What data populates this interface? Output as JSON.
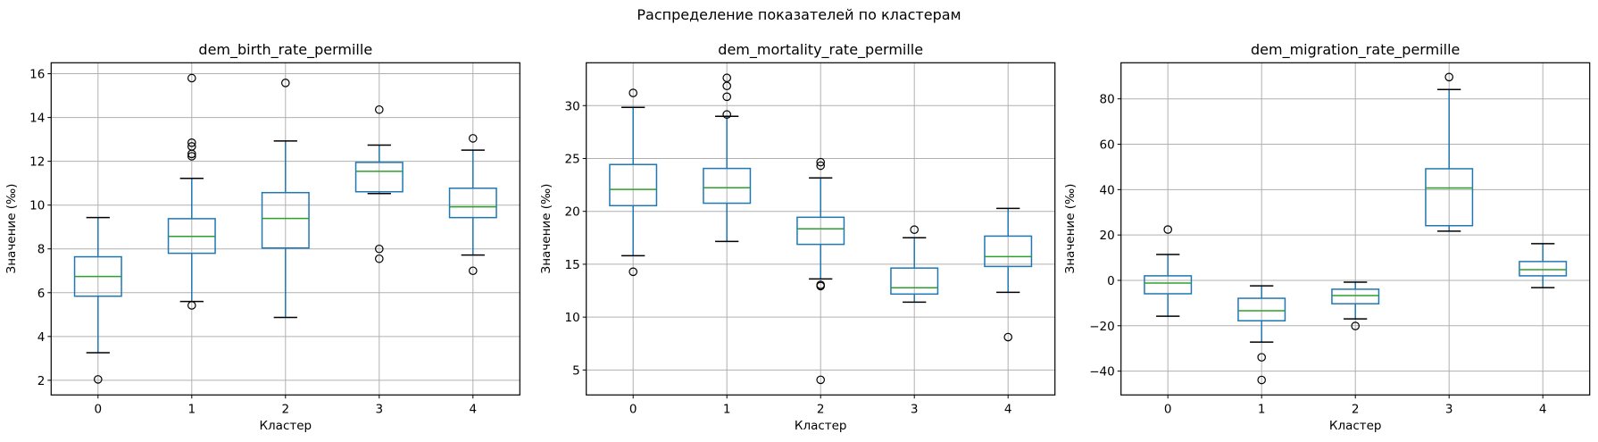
{
  "figure": {
    "suptitle": "Распределение показателей по кластерам",
    "colors": {
      "box": "#1f77b4",
      "median": "#2ca02c",
      "cap": "#000000",
      "flier": "#000000",
      "grid": "#b0b0b0"
    }
  },
  "chart_data": [
    {
      "type": "box",
      "title": "dem_birth_rate_permille",
      "xlabel": "Кластер",
      "ylabel": "Значение (‰)",
      "categories": [
        "0",
        "1",
        "2",
        "3",
        "4"
      ],
      "ylim": [
        1.33,
        16.5
      ],
      "yticks": [
        2,
        4,
        6,
        8,
        10,
        12,
        14,
        16
      ],
      "grid": true,
      "boxes": [
        {
          "cluster": "0",
          "whislo": 3.26,
          "q1": 5.84,
          "median": 6.74,
          "q3": 7.64,
          "whishi": 9.43,
          "fliers": [
            2.04
          ]
        },
        {
          "cluster": "1",
          "whislo": 5.6,
          "q1": 7.8,
          "median": 8.57,
          "q3": 9.38,
          "whishi": 11.22,
          "fliers": [
            15.8,
            12.85,
            12.68,
            12.34,
            12.23,
            5.42
          ]
        },
        {
          "cluster": "2",
          "whislo": 4.87,
          "q1": 8.04,
          "median": 9.39,
          "q3": 10.57,
          "whishi": 12.93,
          "fliers": [
            15.58
          ]
        },
        {
          "cluster": "3",
          "whislo": 10.53,
          "q1": 10.61,
          "median": 11.54,
          "q3": 11.95,
          "whishi": 12.74,
          "fliers": [
            14.36,
            8.0,
            7.55
          ]
        },
        {
          "cluster": "4",
          "whislo": 7.72,
          "q1": 9.43,
          "median": 9.92,
          "q3": 10.77,
          "whishi": 12.51,
          "fliers": [
            13.05,
            7.0
          ]
        }
      ]
    },
    {
      "type": "box",
      "title": "dem_mortality_rate_permille",
      "xlabel": "Кластер",
      "ylabel": "Значение (‰)",
      "categories": [
        "0",
        "1",
        "2",
        "3",
        "4"
      ],
      "ylim": [
        2.64,
        34.05
      ],
      "yticks": [
        5,
        10,
        15,
        20,
        25,
        30
      ],
      "grid": true,
      "boxes": [
        {
          "cluster": "0",
          "whislo": 15.81,
          "q1": 20.54,
          "median": 22.07,
          "q3": 24.43,
          "whishi": 29.83,
          "fliers": [
            31.2,
            14.29
          ]
        },
        {
          "cluster": "1",
          "whislo": 17.16,
          "q1": 20.77,
          "median": 22.23,
          "q3": 24.06,
          "whishi": 28.99,
          "fliers": [
            32.62,
            31.86,
            30.84,
            29.16
          ]
        },
        {
          "cluster": "2",
          "whislo": 13.61,
          "q1": 16.88,
          "median": 18.35,
          "q3": 19.44,
          "whishi": 23.16,
          "fliers": [
            24.65,
            24.32,
            13.05,
            12.94,
            4.07
          ]
        },
        {
          "cluster": "3",
          "whislo": 11.42,
          "q1": 12.18,
          "median": 12.78,
          "q3": 14.64,
          "whishi": 17.51,
          "fliers": [
            18.27
          ]
        },
        {
          "cluster": "4",
          "whislo": 12.34,
          "q1": 14.79,
          "median": 15.72,
          "q3": 17.66,
          "whishi": 20.28,
          "fliers": [
            8.11
          ]
        }
      ]
    },
    {
      "type": "box",
      "title": "dem_migration_rate_permille",
      "xlabel": "Кластер",
      "ylabel": "Значение (‰)",
      "categories": [
        "0",
        "1",
        "2",
        "3",
        "4"
      ],
      "ylim": [
        -50.5,
        95.9
      ],
      "yticks": [
        -40,
        -20,
        0,
        20,
        40,
        60,
        80
      ],
      "grid": true,
      "boxes": [
        {
          "cluster": "0",
          "whislo": -15.8,
          "q1": -5.9,
          "median": -1.2,
          "q3": 2.0,
          "whishi": 11.4,
          "fliers": [
            22.4
          ]
        },
        {
          "cluster": "1",
          "whislo": -27.2,
          "q1": -17.8,
          "median": -13.4,
          "q3": -7.9,
          "whishi": -2.4,
          "fliers": [
            -33.9,
            -43.9
          ]
        },
        {
          "cluster": "2",
          "whislo": -17.0,
          "q1": -10.3,
          "median": -6.7,
          "q3": -3.9,
          "whishi": -0.8,
          "fliers": [
            -20.1
          ]
        },
        {
          "cluster": "3",
          "whislo": 21.7,
          "q1": 24.1,
          "median": 40.7,
          "q3": 49.2,
          "whishi": 84.1,
          "fliers": [
            89.6
          ]
        },
        {
          "cluster": "4",
          "whislo": -3.2,
          "q1": 2.0,
          "median": 4.7,
          "q3": 8.3,
          "whishi": 16.2,
          "fliers": []
        }
      ]
    }
  ]
}
